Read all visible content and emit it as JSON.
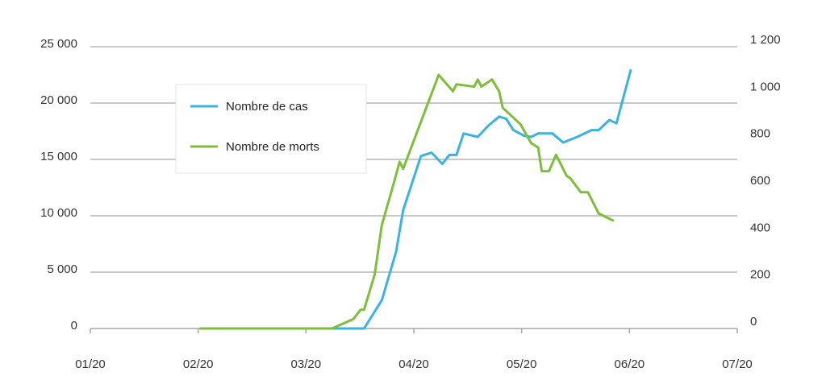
{
  "chart_data": {
    "type": "line",
    "title": "",
    "xlabel": "",
    "ylabel": "",
    "y2label": "",
    "grid": "horizontal",
    "legend_position": "upper-left-center",
    "x_ticks": [
      "01/20",
      "02/20",
      "03/20",
      "04/20",
      "05/20",
      "06/20",
      "07/20"
    ],
    "y_ticks_left": [
      "0",
      "5 000",
      "10 000",
      "15 000",
      "20 000",
      "25 000"
    ],
    "y_ticks_right": [
      "0",
      "200",
      "400",
      "600",
      "800",
      "1 000",
      "1 200"
    ],
    "ylim_left": [
      0,
      25000
    ],
    "ylim_right": [
      0,
      1200
    ],
    "series": [
      {
        "name": "Nombre de cas",
        "axis": "left",
        "color": "#3ab3e3",
        "points": [
          [
            "2020-02-01",
            0
          ],
          [
            "2020-03-10",
            0
          ],
          [
            "2020-03-18",
            0
          ],
          [
            "2020-03-23",
            2500
          ],
          [
            "2020-03-27",
            6800
          ],
          [
            "2020-03-29",
            10500
          ],
          [
            "2020-04-03",
            15300
          ],
          [
            "2020-04-06",
            15600
          ],
          [
            "2020-04-09",
            14600
          ],
          [
            "2020-04-11",
            15400
          ],
          [
            "2020-04-13",
            15400
          ],
          [
            "2020-04-15",
            17300
          ],
          [
            "2020-04-19",
            17000
          ],
          [
            "2020-04-22",
            18000
          ],
          [
            "2020-04-25",
            18800
          ],
          [
            "2020-04-27",
            18600
          ],
          [
            "2020-04-29",
            17600
          ],
          [
            "2020-05-02",
            17100
          ],
          [
            "2020-05-04",
            17000
          ],
          [
            "2020-05-06",
            17300
          ],
          [
            "2020-05-10",
            17300
          ],
          [
            "2020-05-13",
            16500
          ],
          [
            "2020-05-17",
            17000
          ],
          [
            "2020-05-21",
            17600
          ],
          [
            "2020-05-23",
            17600
          ],
          [
            "2020-05-26",
            18500
          ],
          [
            "2020-05-28",
            18200
          ],
          [
            "2020-06-01",
            22900
          ]
        ]
      },
      {
        "name": "Nombre de morts",
        "axis": "right",
        "color": "#7dbf3b",
        "points": [
          [
            "2020-02-01",
            0
          ],
          [
            "2020-03-09",
            0
          ],
          [
            "2020-03-15",
            40
          ],
          [
            "2020-03-17",
            80
          ],
          [
            "2020-03-18",
            80
          ],
          [
            "2020-03-21",
            230
          ],
          [
            "2020-03-23",
            440
          ],
          [
            "2020-03-26",
            600
          ],
          [
            "2020-03-28",
            710
          ],
          [
            "2020-03-29",
            680
          ],
          [
            "2020-04-08",
            1080
          ],
          [
            "2020-04-12",
            1010
          ],
          [
            "2020-04-13",
            1040
          ],
          [
            "2020-04-18",
            1030
          ],
          [
            "2020-04-19",
            1060
          ],
          [
            "2020-04-20",
            1030
          ],
          [
            "2020-04-23",
            1060
          ],
          [
            "2020-04-25",
            1010
          ],
          [
            "2020-04-26",
            940
          ],
          [
            "2020-05-01",
            870
          ],
          [
            "2020-05-04",
            790
          ],
          [
            "2020-05-06",
            770
          ],
          [
            "2020-05-07",
            670
          ],
          [
            "2020-05-09",
            670
          ],
          [
            "2020-05-11",
            740
          ],
          [
            "2020-05-14",
            650
          ],
          [
            "2020-05-15",
            640
          ],
          [
            "2020-05-18",
            580
          ],
          [
            "2020-05-20",
            580
          ],
          [
            "2020-05-23",
            490
          ],
          [
            "2020-05-27",
            460
          ]
        ]
      }
    ]
  }
}
